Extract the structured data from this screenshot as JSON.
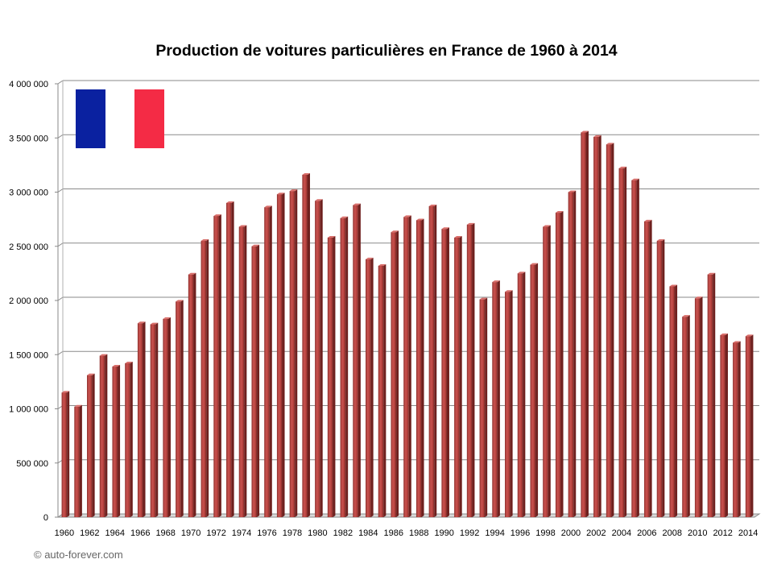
{
  "chart_data": {
    "type": "bar",
    "title": "Production de voitures particulières en France de 1960 à 2014",
    "xlabel": "",
    "ylabel": "",
    "ylim": [
      0,
      4000000
    ],
    "yticks": [
      {
        "value": 0,
        "label": "0"
      },
      {
        "value": 500000,
        "label": "500 000"
      },
      {
        "value": 1000000,
        "label": "1 000 000"
      },
      {
        "value": 1500000,
        "label": "1 500 000"
      },
      {
        "value": 2000000,
        "label": "2 000 000"
      },
      {
        "value": 2500000,
        "label": "2 500 000"
      },
      {
        "value": 3000000,
        "label": "3 000 000"
      },
      {
        "value": 3500000,
        "label": "3 500 000"
      },
      {
        "value": 4000000,
        "label": "4 000 000"
      }
    ],
    "categories": [
      "1960",
      "1961",
      "1962",
      "1963",
      "1964",
      "1965",
      "1966",
      "1967",
      "1968",
      "1969",
      "1970",
      "1971",
      "1972",
      "1973",
      "1974",
      "1975",
      "1976",
      "1977",
      "1978",
      "1979",
      "1980",
      "1981",
      "1982",
      "1983",
      "1984",
      "1985",
      "1986",
      "1987",
      "1988",
      "1989",
      "1990",
      "1991",
      "1992",
      "1993",
      "1994",
      "1995",
      "1996",
      "1997",
      "1998",
      "1999",
      "2000",
      "2001",
      "2002",
      "2003",
      "2004",
      "2005",
      "2006",
      "2007",
      "2008",
      "2009",
      "2010",
      "2011",
      "2012",
      "2013",
      "2014"
    ],
    "xtick_labels": [
      "1960",
      "",
      "1962",
      "",
      "1964",
      "",
      "1966",
      "",
      "1968",
      "",
      "1970",
      "",
      "1972",
      "",
      "1974",
      "",
      "1976",
      "",
      "1978",
      "",
      "1980",
      "",
      "1982",
      "",
      "1984",
      "",
      "1986",
      "",
      "1988",
      "",
      "1990",
      "",
      "1992",
      "",
      "1994",
      "",
      "1996",
      "",
      "1998",
      "",
      "2000",
      "",
      "2002",
      "",
      "2004",
      "",
      "2006",
      "",
      "2008",
      "",
      "2010",
      "",
      "2012",
      "",
      "2014"
    ],
    "values": [
      1150000,
      1020000,
      1310000,
      1490000,
      1390000,
      1420000,
      1790000,
      1780000,
      1830000,
      1990000,
      2240000,
      2550000,
      2780000,
      2900000,
      2680000,
      2500000,
      2860000,
      2980000,
      3010000,
      3160000,
      2920000,
      2580000,
      2760000,
      2880000,
      2380000,
      2320000,
      2630000,
      2770000,
      2740000,
      2870000,
      2660000,
      2580000,
      2700000,
      2010000,
      2170000,
      2080000,
      2250000,
      2330000,
      2680000,
      2810000,
      3000000,
      3550000,
      3510000,
      3440000,
      3220000,
      3110000,
      2730000,
      2550000,
      2130000,
      1850000,
      2020000,
      2240000,
      1680000,
      1610000,
      1670000
    ],
    "bar_color": "#c0504d",
    "grid": true,
    "legend": "none"
  },
  "flag": {
    "blue": "#0a21a0",
    "white": "#ffffff",
    "red": "#f42b45"
  },
  "copyright": "© auto-forever.com"
}
